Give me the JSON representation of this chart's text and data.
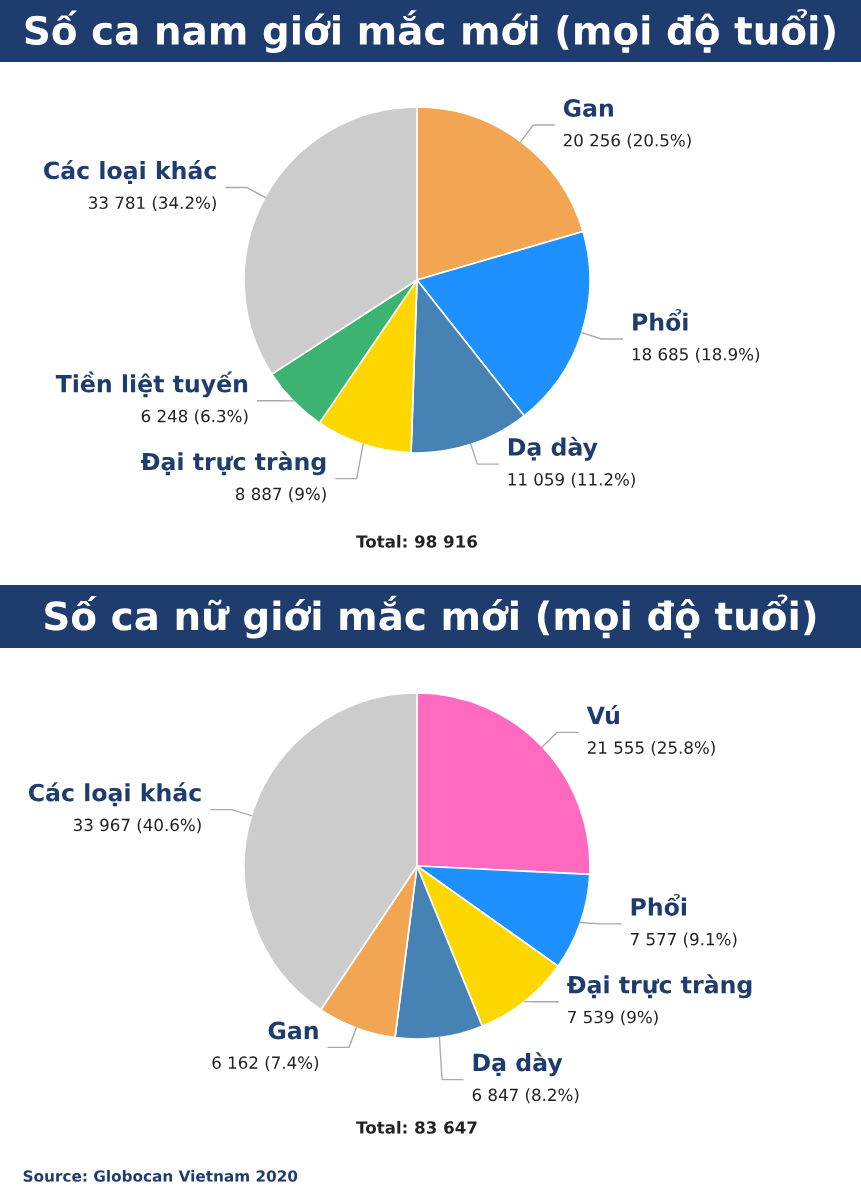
{
  "chart_data": [
    {
      "type": "pie",
      "title": "Số ca nam giới mắc mới (mọi độ tuổi)",
      "categories": [
        "Gan",
        "Phổi",
        "Dạ dày",
        "Đại trực tràng",
        "Tiền liệt tuyến",
        "Các loại khác"
      ],
      "values": [
        20256,
        18685,
        11059,
        8887,
        6248,
        33781
      ],
      "colors": [
        "#f2a654",
        "#1e90ff",
        "#4682b4",
        "#ffd700",
        "#3cb371",
        "#cccccc"
      ],
      "value_labels": [
        "20 256 (20.5%)",
        "18 685 (18.9%)",
        "11 059 (11.2%)",
        "8 887 (9%)",
        "6 248 (6.3%)",
        "33 781 (34.2%)"
      ],
      "annotations": [
        "Total: 98 916"
      ]
    },
    {
      "type": "pie",
      "title": "Số ca nữ giới mắc mới (mọi độ tuổi)",
      "categories": [
        "Vú",
        "Phổi",
        "Đại trực tràng",
        "Dạ dày",
        "Gan",
        "Các loại khác"
      ],
      "values": [
        21555,
        7577,
        7539,
        6847,
        6162,
        33967
      ],
      "colors": [
        "#ff69c0",
        "#1e90ff",
        "#ffd700",
        "#4682b4",
        "#f2a654",
        "#cccccc"
      ],
      "value_labels": [
        "21 555 (25.8%)",
        "7 577 (9.1%)",
        "7 539 (9%)",
        "6 847 (8.2%)",
        "6 162 (7.4%)",
        "33 967 (40.6%)"
      ],
      "annotations": [
        "Total: 83 647",
        "Source: Globocan Vietnam 2020"
      ]
    }
  ]
}
